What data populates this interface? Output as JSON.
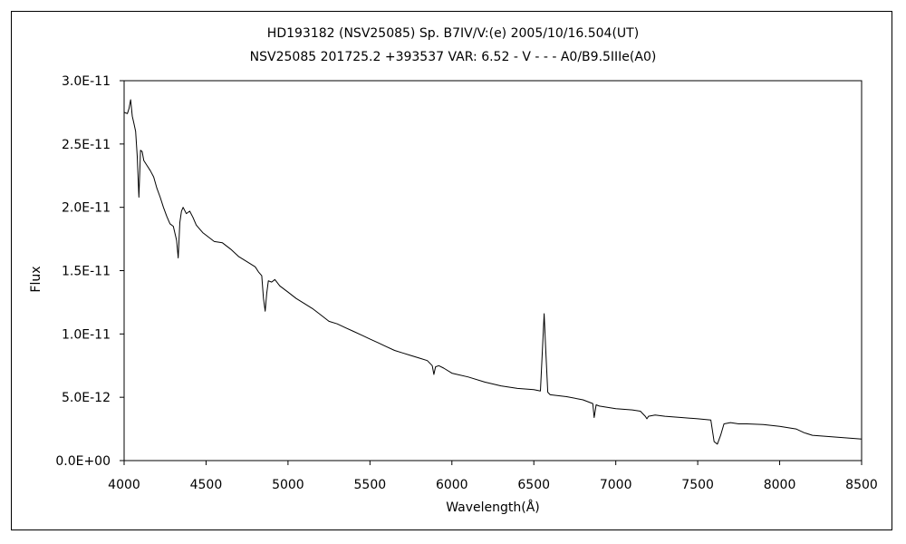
{
  "chart_data": {
    "type": "line",
    "title": "HD193182 (NSV25085)    Sp. B7IV/V:(e)    2005/10/16.504(UT)",
    "subtitle": "NSV25085 201725.2 +393537 VAR: 6.52 - V - - - A0/B9.5IIIe(A0)",
    "xlabel": "Wavelength(Å)",
    "ylabel": "Flux",
    "xlim": [
      4000,
      8500
    ],
    "ylim": [
      0,
      3e-11
    ],
    "x_ticks": [
      4000,
      4500,
      5000,
      5500,
      6000,
      6500,
      7000,
      7500,
      8000,
      8500
    ],
    "x_tick_labels": [
      "4000",
      "4500",
      "5000",
      "5500",
      "6000",
      "6500",
      "7000",
      "7500",
      "8000",
      "8500"
    ],
    "y_ticks": [
      0,
      5e-12,
      1e-11,
      1.5e-11,
      2e-11,
      2.5e-11,
      3e-11
    ],
    "y_tick_labels": [
      "0.0E+00",
      "5.0E-12",
      "1.0E-11",
      "1.5E-11",
      "2.0E-11",
      "2.5E-11",
      "3.0E-11"
    ],
    "grid": false,
    "legend": "none",
    "line_color": "#000000",
    "series": [
      {
        "x": [
          4000,
          4020,
          4030,
          4040,
          4050,
          4060,
          4070,
          4080,
          4090,
          4100,
          4110,
          4120,
          4140,
          4160,
          4180,
          4200,
          4220,
          4240,
          4260,
          4280,
          4300,
          4320,
          4330,
          4340,
          4350,
          4360,
          4380,
          4400,
          4420,
          4440,
          4460,
          4480,
          4500,
          4550,
          4600,
          4650,
          4700,
          4750,
          4800,
          4820,
          4840,
          4850,
          4861,
          4870,
          4880,
          4900,
          4920,
          4950,
          5000,
          5050,
          5100,
          5150,
          5200,
          5250,
          5300,
          5350,
          5400,
          5450,
          5500,
          5550,
          5600,
          5650,
          5700,
          5750,
          5800,
          5850,
          5880,
          5890,
          5900,
          5920,
          5950,
          6000,
          6100,
          6200,
          6300,
          6400,
          6500,
          6540,
          6555,
          6563,
          6572,
          6585,
          6600,
          6700,
          6800,
          6860,
          6868,
          6880,
          6900,
          7000,
          7100,
          7150,
          7180,
          7190,
          7200,
          7240,
          7300,
          7400,
          7500,
          7580,
          7600,
          7620,
          7640,
          7660,
          7700,
          7750,
          7800,
          7900,
          8000,
          8100,
          8150,
          8200,
          8300,
          8400,
          8500
        ],
        "y": [
          2.75e-11,
          2.74e-11,
          2.78e-11,
          2.85e-11,
          2.72e-11,
          2.66e-11,
          2.6e-11,
          2.4e-11,
          2.08e-11,
          2.45e-11,
          2.44e-11,
          2.37e-11,
          2.33e-11,
          2.29e-11,
          2.24e-11,
          2.15e-11,
          2.08e-11,
          2e-11,
          1.93e-11,
          1.87e-11,
          1.85e-11,
          1.74e-11,
          1.6e-11,
          1.88e-11,
          1.97e-11,
          2e-11,
          1.95e-11,
          1.97e-11,
          1.92e-11,
          1.86e-11,
          1.83e-11,
          1.8e-11,
          1.78e-11,
          1.73e-11,
          1.72e-11,
          1.67e-11,
          1.61e-11,
          1.57e-11,
          1.53e-11,
          1.49e-11,
          1.46e-11,
          1.28e-11,
          1.18e-11,
          1.32e-11,
          1.42e-11,
          1.41e-11,
          1.43e-11,
          1.38e-11,
          1.33e-11,
          1.28e-11,
          1.24e-11,
          1.2e-11,
          1.15e-11,
          1.1e-11,
          1.08e-11,
          1.05e-11,
          1.02e-11,
          9.9e-12,
          9.6e-12,
          9.3e-12,
          9e-12,
          8.7e-12,
          8.5e-12,
          8.3e-12,
          8.1e-12,
          7.9e-12,
          7.5e-12,
          6.8e-12,
          7.4e-12,
          7.5e-12,
          7.3e-12,
          6.9e-12,
          6.6e-12,
          6.2e-12,
          5.9e-12,
          5.7e-12,
          5.6e-12,
          5.5e-12,
          9.5e-12,
          1.16e-11,
          9e-12,
          5.4e-12,
          5.2e-12,
          5.05e-12,
          4.8e-12,
          4.5e-12,
          3.4e-12,
          4.4e-12,
          4.3e-12,
          4.1e-12,
          4e-12,
          3.9e-12,
          3.5e-12,
          3.3e-12,
          3.5e-12,
          3.6e-12,
          3.5e-12,
          3.4e-12,
          3.3e-12,
          3.2e-12,
          1.5e-12,
          1.3e-12,
          2e-12,
          2.9e-12,
          3e-12,
          2.9e-12,
          2.9e-12,
          2.85e-12,
          2.7e-12,
          2.5e-12,
          2.2e-12,
          2e-12,
          1.9e-12,
          1.8e-12,
          1.7e-12
        ]
      }
    ]
  }
}
